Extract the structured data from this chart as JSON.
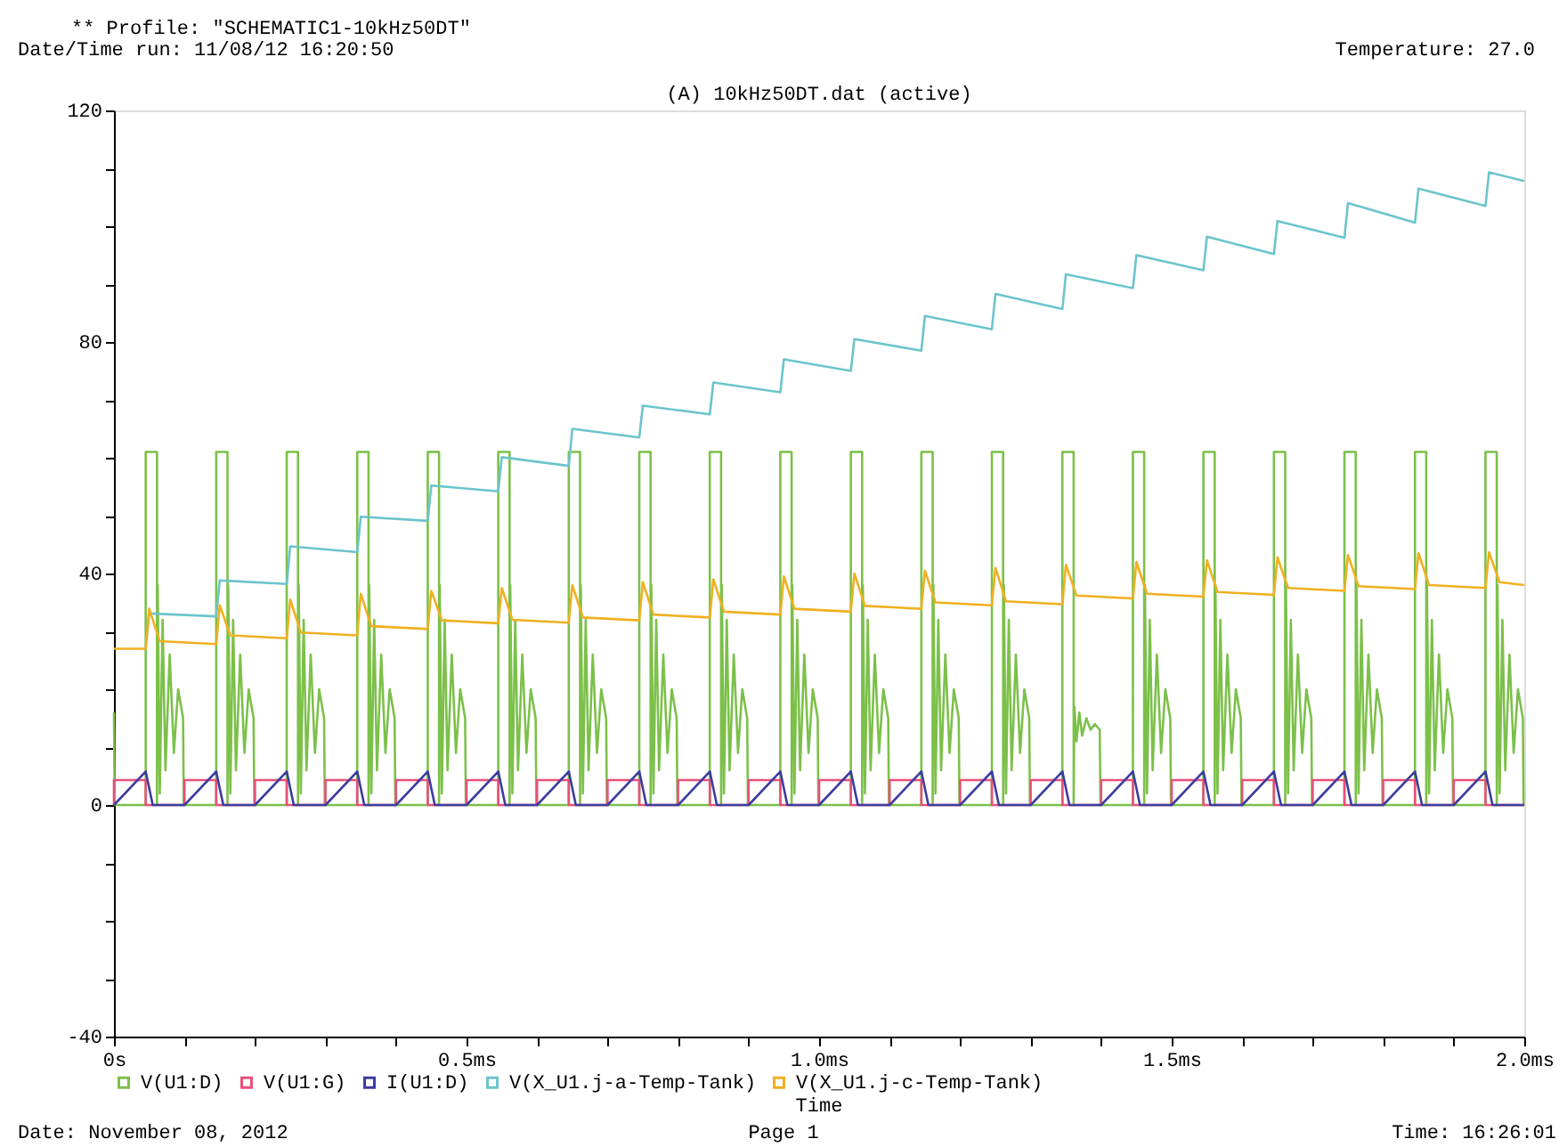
{
  "chart_data": {
    "type": "line",
    "title": "(A) 10kHz50DT.dat (active)",
    "xlabel": "Time",
    "annotations": [
      "** Profile: \"SCHEMATIC1-10kHz50DT\"",
      "Date/Time run: 11/08/12 16:20:50",
      "Temperature: 27.0",
      "Date: November 08, 2012",
      "Page 1",
      "Time: 16:26:01"
    ],
    "xlim": [
      0,
      2.0
    ],
    "ylim": [
      -40,
      120
    ],
    "xticks": [
      {
        "value": 0,
        "label": "0s"
      },
      {
        "value": 0.1,
        "label": null
      },
      {
        "value": 0.2,
        "label": null
      },
      {
        "value": 0.3,
        "label": null
      },
      {
        "value": 0.4,
        "label": null
      },
      {
        "value": 0.5,
        "label": "0.5ms"
      },
      {
        "value": 0.6,
        "label": null
      },
      {
        "value": 0.7,
        "label": null
      },
      {
        "value": 0.8,
        "label": null
      },
      {
        "value": 0.9,
        "label": null
      },
      {
        "value": 1.0,
        "label": "1.0ms"
      },
      {
        "value": 1.1,
        "label": null
      },
      {
        "value": 1.2,
        "label": null
      },
      {
        "value": 1.3,
        "label": null
      },
      {
        "value": 1.4,
        "label": null
      },
      {
        "value": 1.5,
        "label": "1.5ms"
      },
      {
        "value": 1.6,
        "label": null
      },
      {
        "value": 1.7,
        "label": null
      },
      {
        "value": 1.8,
        "label": null
      },
      {
        "value": 1.9,
        "label": null
      },
      {
        "value": 2.0,
        "label": "2.0ms"
      }
    ],
    "yticks": [
      -40,
      {
        "value": -30,
        "label": null
      },
      {
        "value": -20,
        "label": null
      },
      {
        "value": -10,
        "label": null
      },
      0,
      {
        "value": 10,
        "label": null
      },
      {
        "value": 20,
        "label": null
      },
      {
        "value": 30,
        "label": null
      },
      40,
      {
        "value": 50,
        "label": null
      },
      {
        "value": 60,
        "label": null
      },
      {
        "value": 70,
        "label": null
      },
      80,
      {
        "value": 90,
        "label": null
      },
      {
        "value": 100,
        "label": null
      },
      {
        "value": 110,
        "label": null
      },
      120
    ],
    "grid": false,
    "legend": "bottom",
    "line_style": "solid",
    "marker": "none",
    "series": [
      {
        "name": "V(U1:D)",
        "color": "#7cc04a",
        "x": [
          0,
          0.001,
          0.045,
          0.045,
          0.061,
          0.061,
          0.062,
          0.065,
          0.069,
          0.073,
          0.079,
          0.085,
          0.091,
          0.098,
          0.099,
          0.145,
          0.145,
          0.161,
          0.161,
          0.162,
          0.165,
          0.169,
          0.173,
          0.179,
          0.185,
          0.191,
          0.198,
          0.199,
          0.245,
          0.245,
          0.261,
          0.261,
          0.262,
          0.265,
          0.269,
          0.273,
          0.279,
          0.285,
          0.291,
          0.298,
          0.299,
          0.345,
          0.345,
          0.361,
          0.361,
          0.362,
          0.365,
          0.369,
          0.373,
          0.379,
          0.385,
          0.391,
          0.398,
          0.399,
          0.445,
          0.445,
          0.461,
          0.461,
          0.462,
          0.465,
          0.469,
          0.473,
          0.479,
          0.485,
          0.491,
          0.498,
          0.499,
          0.545,
          0.545,
          0.561,
          0.561,
          0.562,
          0.565,
          0.569,
          0.573,
          0.579,
          0.585,
          0.591,
          0.598,
          0.599,
          0.645,
          0.645,
          0.661,
          0.661,
          0.662,
          0.665,
          0.669,
          0.673,
          0.679,
          0.685,
          0.691,
          0.698,
          0.699,
          0.745,
          0.745,
          0.761,
          0.761,
          0.762,
          0.765,
          0.769,
          0.773,
          0.779,
          0.785,
          0.791,
          0.798,
          0.799,
          0.845,
          0.845,
          0.861,
          0.861,
          0.862,
          0.865,
          0.869,
          0.873,
          0.879,
          0.885,
          0.891,
          0.898,
          0.899,
          0.945,
          0.945,
          0.961,
          0.961,
          0.962,
          0.965,
          0.969,
          0.973,
          0.979,
          0.985,
          0.991,
          0.998,
          0.999,
          1.045,
          1.045,
          1.061,
          1.061,
          1.062,
          1.065,
          1.069,
          1.073,
          1.079,
          1.085,
          1.091,
          1.098,
          1.099,
          1.145,
          1.145,
          1.161,
          1.161,
          1.162,
          1.165,
          1.169,
          1.173,
          1.179,
          1.185,
          1.191,
          1.198,
          1.199,
          1.245,
          1.245,
          1.261,
          1.261,
          1.262,
          1.265,
          1.269,
          1.273,
          1.279,
          1.285,
          1.291,
          1.298,
          1.299,
          1.345,
          1.345,
          1.361,
          1.361,
          1.362,
          1.365,
          1.369,
          1.373,
          1.379,
          1.385,
          1.391,
          1.398,
          1.399,
          1.445,
          1.445,
          1.461,
          1.461,
          1.462,
          1.465,
          1.469,
          1.473,
          1.479,
          1.485,
          1.491,
          1.498,
          1.499,
          1.545,
          1.545,
          1.561,
          1.561,
          1.562,
          1.565,
          1.569,
          1.573,
          1.579,
          1.585,
          1.591,
          1.598,
          1.599,
          1.645,
          1.645,
          1.661,
          1.661,
          1.662,
          1.665,
          1.669,
          1.673,
          1.679,
          1.685,
          1.691,
          1.698,
          1.699,
          1.745,
          1.745,
          1.761,
          1.761,
          1.762,
          1.765,
          1.769,
          1.773,
          1.779,
          1.785,
          1.791,
          1.798,
          1.799,
          1.845,
          1.845,
          1.861,
          1.861,
          1.862,
          1.865,
          1.869,
          1.873,
          1.879,
          1.885,
          1.891,
          1.898,
          1.899,
          1.945,
          1.945,
          1.961,
          1.961,
          1.962,
          1.965,
          1.969,
          1.973,
          1.979,
          1.985,
          1.991,
          1.998,
          1.999,
          2.0
        ],
        "values": [
          16,
          0,
          0,
          61,
          61,
          0,
          38,
          2,
          32,
          6,
          26,
          9,
          20,
          15,
          0,
          0,
          61,
          61,
          0,
          38,
          2,
          32,
          6,
          26,
          9,
          20,
          15,
          0,
          0,
          61,
          61,
          0,
          38,
          2,
          32,
          6,
          26,
          9,
          20,
          15,
          0,
          0,
          61,
          61,
          0,
          38,
          2,
          32,
          6,
          26,
          9,
          20,
          15,
          0,
          0,
          61,
          61,
          0,
          38,
          2,
          32,
          6,
          26,
          9,
          20,
          15,
          0,
          0,
          61,
          61,
          0,
          38,
          2,
          32,
          6,
          26,
          9,
          20,
          15,
          0,
          0,
          61,
          61,
          0,
          38,
          2,
          32,
          6,
          26,
          9,
          20,
          15,
          0,
          0,
          61,
          61,
          0,
          38,
          2,
          32,
          6,
          26,
          9,
          20,
          15,
          0,
          0,
          61,
          61,
          0,
          38,
          2,
          32,
          6,
          26,
          9,
          20,
          15,
          0,
          0,
          61,
          61,
          0,
          38,
          2,
          32,
          6,
          26,
          9,
          20,
          15,
          0,
          0,
          61,
          61,
          0,
          38,
          2,
          32,
          6,
          26,
          9,
          20,
          15,
          0,
          0,
          61,
          61,
          0,
          38,
          2,
          32,
          6,
          26,
          9,
          20,
          15,
          0,
          0,
          61,
          61,
          0,
          38,
          2,
          32,
          6,
          26,
          9,
          20,
          15,
          0,
          0,
          61,
          61,
          0,
          17,
          11,
          16,
          12,
          15,
          13,
          14,
          13,
          0,
          0,
          61,
          61,
          0,
          38,
          2,
          32,
          6,
          26,
          9,
          20,
          15,
          0,
          0,
          61,
          61,
          0,
          38,
          2,
          32,
          6,
          26,
          9,
          20,
          15,
          0,
          0,
          61,
          61,
          0,
          38,
          2,
          32,
          6,
          26,
          9,
          20,
          15,
          0,
          0,
          61,
          61,
          0,
          38,
          2,
          32,
          6,
          26,
          9,
          20,
          15,
          0,
          0,
          61,
          61,
          0,
          38,
          2,
          32,
          6,
          26,
          9,
          20,
          15,
          0,
          0,
          61,
          61,
          0,
          38,
          2,
          32,
          6,
          26,
          9,
          20,
          15,
          0,
          0
        ]
      },
      {
        "name": "V(U1:G)",
        "color": "#e8507a",
        "x": [
          0,
          0,
          0.045,
          0.045,
          0.1,
          0.1,
          0.145,
          0.145,
          0.2,
          0.2,
          0.245,
          0.245,
          0.3,
          0.3,
          0.345,
          0.345,
          0.4,
          0.4,
          0.445,
          0.445,
          0.5,
          0.5,
          0.545,
          0.545,
          0.6,
          0.6,
          0.645,
          0.645,
          0.7,
          0.7,
          0.745,
          0.745,
          0.8,
          0.8,
          0.845,
          0.845,
          0.9,
          0.9,
          0.945,
          0.945,
          1.0,
          1.0,
          1.045,
          1.045,
          1.1,
          1.1,
          1.145,
          1.145,
          1.2,
          1.2,
          1.245,
          1.245,
          1.3,
          1.3,
          1.345,
          1.345,
          1.4,
          1.4,
          1.445,
          1.445,
          1.5,
          1.5,
          1.545,
          1.545,
          1.6,
          1.6,
          1.645,
          1.645,
          1.7,
          1.7,
          1.745,
          1.745,
          1.8,
          1.8,
          1.845,
          1.845,
          1.9,
          1.9,
          1.945,
          1.945,
          2.0
        ],
        "values": [
          0,
          4.3,
          4.3,
          0,
          0,
          4.3,
          4.3,
          0,
          0,
          4.3,
          4.3,
          0,
          0,
          4.3,
          4.3,
          0,
          0,
          4.3,
          4.3,
          0,
          0,
          4.3,
          4.3,
          0,
          0,
          4.3,
          4.3,
          0,
          0,
          4.3,
          4.3,
          0,
          0,
          4.3,
          4.3,
          0,
          0,
          4.3,
          4.3,
          0,
          0,
          4.3,
          4.3,
          0,
          0,
          4.3,
          4.3,
          0,
          0,
          4.3,
          4.3,
          0,
          0,
          4.3,
          4.3,
          0,
          0,
          4.3,
          4.3,
          0,
          0,
          4.3,
          4.3,
          0,
          0,
          4.3,
          4.3,
          0,
          0,
          4.3,
          4.3,
          0,
          0,
          4.3,
          4.3,
          0,
          0,
          4.3,
          4.3,
          0,
          0
        ]
      },
      {
        "name": "I(U1:D)",
        "color": "#3c3ca0",
        "x": [
          0,
          0.045,
          0.055,
          0.1,
          0.145,
          0.155,
          0.2,
          0.245,
          0.255,
          0.3,
          0.345,
          0.355,
          0.4,
          0.445,
          0.455,
          0.5,
          0.545,
          0.555,
          0.6,
          0.645,
          0.655,
          0.7,
          0.745,
          0.755,
          0.8,
          0.845,
          0.855,
          0.9,
          0.945,
          0.955,
          1.0,
          1.045,
          1.055,
          1.1,
          1.145,
          1.155,
          1.2,
          1.245,
          1.255,
          1.3,
          1.345,
          1.355,
          1.4,
          1.445,
          1.455,
          1.5,
          1.545,
          1.555,
          1.6,
          1.645,
          1.655,
          1.7,
          1.745,
          1.755,
          1.8,
          1.845,
          1.855,
          1.9,
          1.945,
          1.955,
          2.0
        ],
        "values": [
          0,
          5.8,
          0,
          0,
          5.8,
          0,
          0,
          5.8,
          0,
          0,
          5.8,
          0,
          0,
          5.8,
          0,
          0,
          5.8,
          0,
          0,
          5.8,
          0,
          0,
          5.8,
          0,
          0,
          5.8,
          0,
          0,
          5.8,
          0,
          0,
          5.8,
          0,
          0,
          5.8,
          0,
          0,
          5.8,
          0,
          0,
          5.8,
          0,
          0,
          5.8,
          0,
          0,
          5.8,
          0,
          0,
          5.8,
          0,
          0,
          5.8,
          0,
          0,
          5.8,
          0,
          0,
          5.8,
          0,
          0
        ]
      },
      {
        "name": "V(X_U1.j-a-Temp-Tank)",
        "color": "#6cc4cc",
        "x": [
          0.045,
          0.05,
          0.145,
          0.15,
          0.245,
          0.25,
          0.345,
          0.35,
          0.445,
          0.45,
          0.545,
          0.55,
          0.645,
          0.65,
          0.745,
          0.75,
          0.845,
          0.85,
          0.945,
          0.95,
          1.045,
          1.05,
          1.145,
          1.15,
          1.245,
          1.25,
          1.345,
          1.35,
          1.445,
          1.45,
          1.545,
          1.55,
          1.645,
          1.65,
          1.745,
          1.75,
          1.845,
          1.85,
          1.945,
          1.95,
          2.0
        ],
        "values": [
          27,
          33.1,
          32.6,
          38.8,
          38.2,
          44.7,
          43.7,
          49.8,
          49.1,
          55.2,
          54.2,
          60.1,
          58.6,
          65,
          63.5,
          69,
          67.5,
          73,
          71.3,
          77,
          75,
          80.5,
          78.5,
          84.5,
          82.2,
          88.3,
          85.7,
          91.7,
          89.3,
          95,
          92.4,
          98.2,
          95.2,
          100.9,
          98,
          104,
          100.6,
          106.5,
          103.5,
          109.3,
          107.8
        ]
      },
      {
        "name": "V(X_U1.j-c-Temp-Tank)",
        "color": "#f0b020",
        "x": [
          0,
          0.045,
          0.05,
          0.065,
          0.145,
          0.15,
          0.165,
          0.245,
          0.25,
          0.265,
          0.345,
          0.35,
          0.365,
          0.445,
          0.45,
          0.465,
          0.545,
          0.55,
          0.565,
          0.645,
          0.65,
          0.665,
          0.745,
          0.75,
          0.765,
          0.845,
          0.85,
          0.865,
          0.945,
          0.95,
          0.965,
          1.045,
          1.05,
          1.065,
          1.145,
          1.15,
          1.165,
          1.245,
          1.25,
          1.265,
          1.345,
          1.35,
          1.365,
          1.445,
          1.45,
          1.465,
          1.545,
          1.55,
          1.565,
          1.645,
          1.65,
          1.665,
          1.745,
          1.75,
          1.765,
          1.845,
          1.85,
          1.865,
          1.945,
          1.95,
          1.965,
          2.0
        ],
        "values": [
          27,
          27,
          33.9,
          28.3,
          27.8,
          34.5,
          29.3,
          28.8,
          35.5,
          29.8,
          29.3,
          36.5,
          30.9,
          30.4,
          37,
          31.9,
          31.4,
          37.5,
          32,
          31.5,
          38,
          32.4,
          31.9,
          38.5,
          32.9,
          32.4,
          39,
          33.4,
          32.9,
          39.5,
          33.9,
          33.4,
          40,
          34.4,
          33.9,
          40.5,
          35,
          34.5,
          41,
          35.2,
          34.7,
          41.5,
          36.2,
          35.7,
          42,
          36.5,
          36,
          42.3,
          36.8,
          36.3,
          42.8,
          37.5,
          37,
          43.2,
          37.8,
          37.3,
          43.5,
          38,
          37.5,
          43.7,
          38.5,
          38
        ]
      }
    ]
  }
}
